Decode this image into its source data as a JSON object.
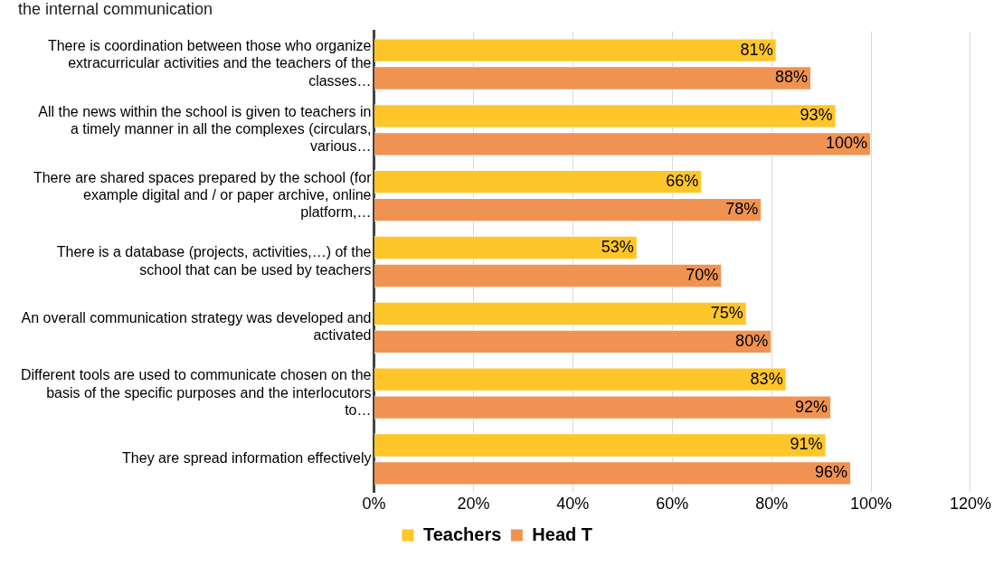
{
  "chart_data": {
    "type": "bar",
    "orientation": "horizontal",
    "title": "the internal communication",
    "categories": [
      "There is coordination between those who organize extracurricular activities and the teachers of the classes…",
      "All the news within the school is given to teachers in a timely manner in all the complexes (circulars, various…",
      "There are shared spaces prepared by the school (for example digital and / or paper archive, online platform,…",
      "There is a database (projects, activities,…) of the school that can be used by teachers",
      "An overall communication strategy was developed and activated",
      "Different tools are used to communicate chosen on the basis of the specific purposes and the interlocutors to…",
      "They are spread information effectively"
    ],
    "series": [
      {
        "name": "Teachers",
        "color": "#ffc629",
        "values": [
          81,
          93,
          66,
          53,
          75,
          83,
          91
        ],
        "value_labels": [
          "81%",
          "93%",
          "66%",
          "53%",
          "75%",
          "83%",
          "91%"
        ]
      },
      {
        "name": "Head T",
        "color": "#f09352",
        "values": [
          88,
          100,
          78,
          70,
          80,
          92,
          96
        ],
        "value_labels": [
          "88%",
          "100%",
          "78%",
          "70%",
          "80%",
          "92%",
          "96%"
        ]
      }
    ],
    "xlim": [
      0,
      120
    ],
    "xticks": [
      {
        "value": 0,
        "label": "0%"
      },
      {
        "value": 20,
        "label": "20%"
      },
      {
        "value": 40,
        "label": "40%"
      },
      {
        "value": 60,
        "label": "60%"
      },
      {
        "value": 80,
        "label": "80%"
      },
      {
        "value": 100,
        "label": "100%"
      },
      {
        "value": 120,
        "label": "120%"
      }
    ],
    "grid": "x",
    "legend": "bottom"
  }
}
